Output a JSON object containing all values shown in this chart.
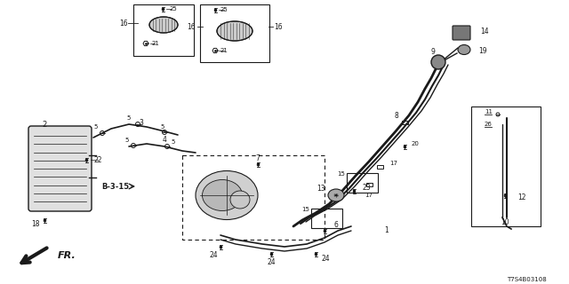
{
  "bg_color": "#ffffff",
  "line_color": "#1a1a1a",
  "fig_width": 6.4,
  "fig_height": 3.2,
  "dpi": 100,
  "diagram_code": "T7S4B03108"
}
